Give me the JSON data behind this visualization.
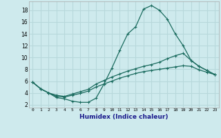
{
  "title": "",
  "xlabel": "Humidex (Indice chaleur)",
  "bg_color": "#ceeaed",
  "grid_color": "#b8d8db",
  "line_color": "#1a6b5e",
  "xlim": [
    -0.5,
    23.5
  ],
  "ylim": [
    1.5,
    19.5
  ],
  "xticks": [
    0,
    1,
    2,
    3,
    4,
    5,
    6,
    7,
    8,
    9,
    10,
    11,
    12,
    13,
    14,
    15,
    16,
    17,
    18,
    19,
    20,
    21,
    22,
    23
  ],
  "yticks": [
    2,
    4,
    6,
    8,
    10,
    12,
    14,
    16,
    18
  ],
  "series1_x": [
    0,
    1,
    2,
    3,
    4,
    5,
    6,
    7,
    8,
    9,
    10,
    11,
    12,
    13,
    14,
    15,
    16,
    17,
    18,
    19,
    20,
    21,
    22,
    23
  ],
  "series1_y": [
    5.8,
    4.7,
    4.0,
    3.2,
    3.0,
    2.6,
    2.4,
    2.4,
    3.1,
    5.5,
    8.2,
    11.2,
    14.0,
    15.2,
    18.2,
    18.8,
    18.0,
    16.5,
    14.0,
    12.0,
    9.5,
    8.5,
    7.8,
    7.1
  ],
  "series2_x": [
    0,
    1,
    2,
    3,
    4,
    5,
    6,
    7,
    8,
    9,
    10,
    11,
    12,
    13,
    14,
    15,
    16,
    17,
    18,
    19,
    20,
    21,
    22,
    23
  ],
  "series2_y": [
    5.8,
    4.7,
    4.0,
    3.6,
    3.4,
    3.8,
    4.2,
    4.6,
    5.5,
    6.1,
    6.7,
    7.2,
    7.7,
    8.1,
    8.5,
    8.8,
    9.2,
    9.8,
    10.3,
    10.7,
    9.5,
    8.5,
    7.8,
    7.1
  ],
  "series3_x": [
    0,
    1,
    2,
    3,
    4,
    5,
    6,
    7,
    8,
    9,
    10,
    11,
    12,
    13,
    14,
    15,
    16,
    17,
    18,
    19,
    20,
    21,
    22,
    23
  ],
  "series3_y": [
    5.8,
    4.7,
    4.0,
    3.4,
    3.3,
    3.6,
    3.9,
    4.3,
    5.0,
    5.5,
    6.0,
    6.5,
    6.9,
    7.3,
    7.6,
    7.8,
    8.0,
    8.2,
    8.4,
    8.6,
    8.5,
    7.9,
    7.5,
    7.1
  ]
}
